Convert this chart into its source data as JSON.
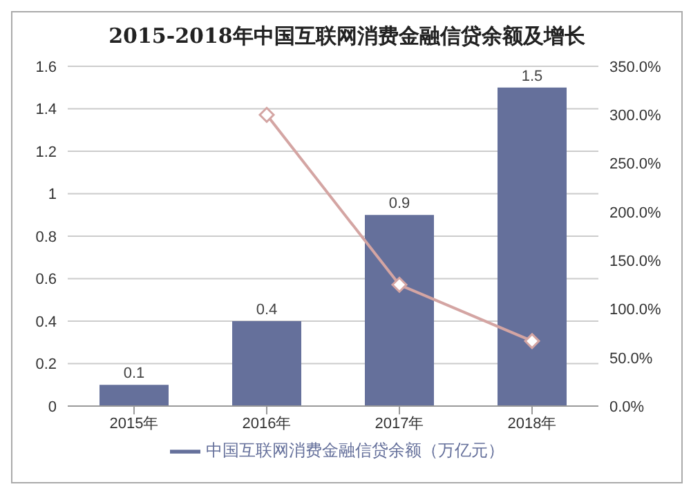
{
  "chart_data": {
    "type": "bar",
    "title": "2015-2018年中国互联网消费金融信贷余额及增长",
    "categories": [
      "2015年",
      "2016年",
      "2017年",
      "2018年"
    ],
    "series": [
      {
        "name": "中国互联网消费金融信贷余额（万亿元）",
        "color": "#65709b",
        "values": [
          0.1,
          0.4,
          0.9,
          1.5
        ],
        "value_labels": [
          "0.1",
          "0.4",
          "0.9",
          "1.5"
        ]
      },
      {
        "type": "line",
        "axis": "y2",
        "color": "#d4a5a3",
        "values": [
          null,
          300,
          125,
          67
        ],
        "marker": "diamond"
      }
    ],
    "ylim": [
      0,
      1.6
    ],
    "yticks": [
      0,
      0.2,
      0.4,
      0.6,
      0.8,
      1,
      1.2,
      1.4,
      1.6
    ],
    "y2lim": [
      0,
      350
    ],
    "y2ticks": [
      {
        "value": 0,
        "label": "0.0%"
      },
      {
        "value": 50,
        "label": "50.0%"
      },
      {
        "value": 100,
        "label": "100.0%"
      },
      {
        "value": 150,
        "label": "150.0%"
      },
      {
        "value": 200,
        "label": "200.0%"
      },
      {
        "value": 250,
        "label": "250.0%"
      },
      {
        "value": 300,
        "label": "300.0%"
      },
      {
        "value": 350,
        "label": "350.0%"
      }
    ],
    "grid": "y",
    "legend": "bottom"
  }
}
